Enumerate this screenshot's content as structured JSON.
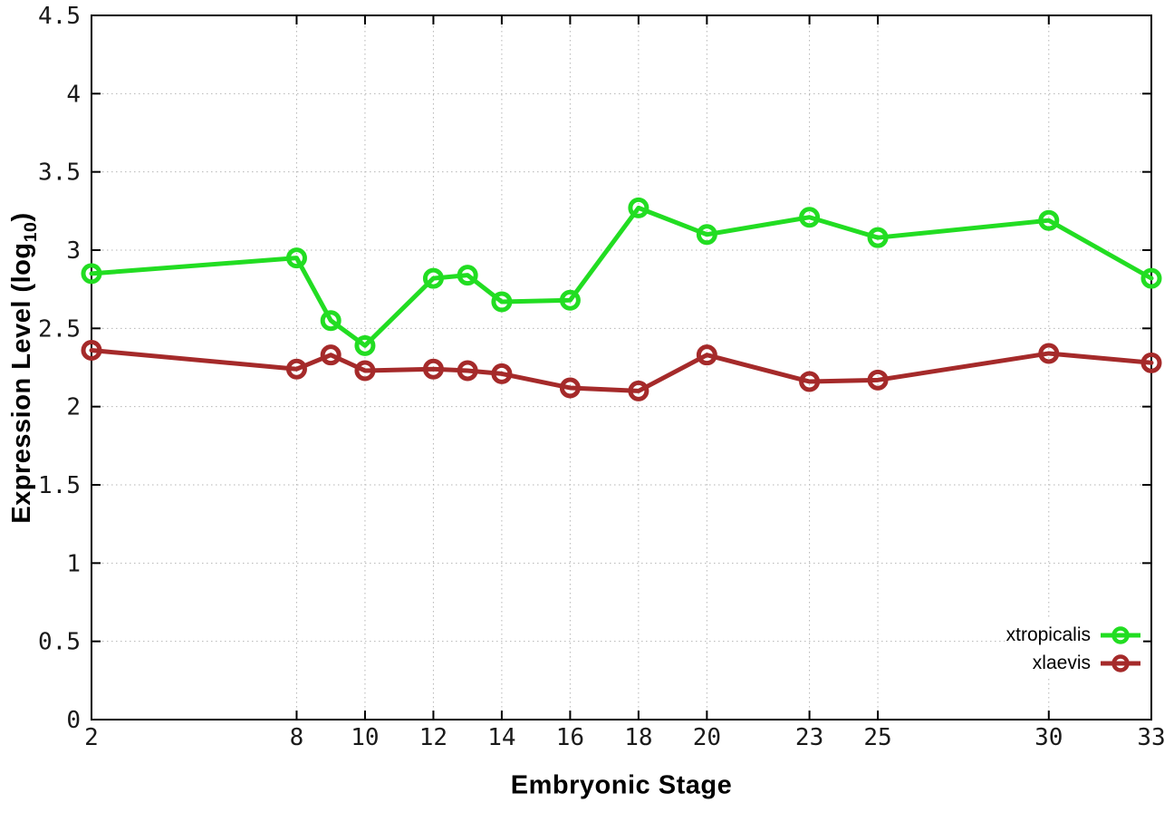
{
  "chart_data": {
    "type": "line",
    "title": "",
    "xlabel": "Embryonic Stage",
    "ylabel": "Expression Level (log10)",
    "ylabel_parts": {
      "prefix": "Expression Level (log",
      "sub": "10",
      "suffix": ")"
    },
    "xlim": [
      2,
      33
    ],
    "ylim": [
      0,
      4.5
    ],
    "grid": true,
    "legend_position": "bottom-right",
    "x": [
      2,
      8,
      9,
      10,
      12,
      13,
      14,
      16,
      18,
      20,
      23,
      25,
      30,
      33
    ],
    "series": [
      {
        "name": "xtropicalis",
        "color": "#22dd22",
        "values": [
          2.85,
          2.95,
          2.55,
          2.39,
          2.82,
          2.84,
          2.67,
          2.68,
          3.27,
          3.1,
          3.21,
          3.08,
          3.19,
          2.82
        ]
      },
      {
        "name": "xlaevis",
        "color": "#a52a2a",
        "values": [
          2.36,
          2.24,
          2.33,
          2.23,
          2.24,
          2.23,
          2.21,
          2.12,
          2.1,
          2.33,
          2.16,
          2.17,
          2.34,
          2.28
        ]
      }
    ],
    "xticks": [
      2,
      8,
      10,
      12,
      14,
      16,
      18,
      20,
      23,
      25,
      30,
      33
    ],
    "xtick_labels": [
      "2",
      "8",
      "10",
      "12",
      "14",
      "16",
      "18",
      "20",
      "23",
      "25",
      "30",
      "33"
    ],
    "yticks": [
      0,
      0.5,
      1,
      1.5,
      2,
      2.5,
      3,
      3.5,
      4,
      4.5
    ],
    "ytick_labels": [
      "0",
      "0.5",
      "1",
      "1.5",
      "2",
      "2.5",
      "3",
      "3.5",
      "4",
      "4.5"
    ],
    "colors": {
      "axis": "#000000",
      "grid": "#b5b5b5",
      "tick_text": "#1a1a1a",
      "background": "#ffffff"
    }
  }
}
